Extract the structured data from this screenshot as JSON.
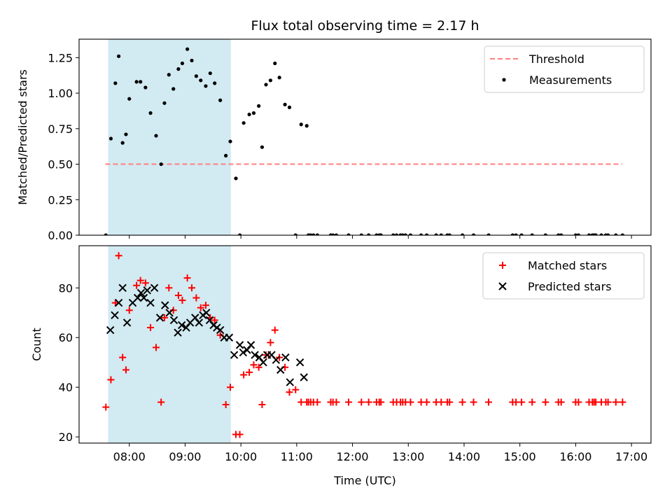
{
  "chart_data": [
    {
      "type": "scatter",
      "title": "Flux total observing time = 2.17 h",
      "xlabel": "",
      "ylabel": "Matched/Predicted stars",
      "x_unit": "hours UTC",
      "xlim": [
        7.1,
        17.35
      ],
      "ylim": [
        0,
        1.38
      ],
      "yticks": [
        0,
        0.25,
        0.5,
        0.75,
        1.0,
        1.25
      ],
      "ytick_labels": [
        "0.00",
        "0.25",
        "0.50",
        "0.75",
        "1.00",
        "1.25"
      ],
      "shaded_interval": {
        "start": 7.62,
        "end": 9.82,
        "color": "#add8e6"
      },
      "threshold": {
        "name": "Threshold",
        "value": 0.5,
        "x_range": [
          7.57,
          16.83
        ],
        "color": "#ff7f7f"
      },
      "legend": {
        "location": "top-right",
        "entries": [
          "Threshold",
          "Measurements"
        ]
      },
      "series": [
        {
          "name": "Measurements",
          "marker": "dot",
          "color": "#000000",
          "x": [
            7.58,
            7.67,
            7.75,
            7.81,
            7.88,
            7.94,
            8.0,
            8.13,
            8.2,
            8.29,
            8.38,
            8.48,
            8.57,
            8.63,
            8.71,
            8.79,
            8.88,
            8.95,
            9.04,
            9.12,
            9.2,
            9.28,
            9.37,
            9.45,
            9.53,
            9.63,
            9.73,
            9.81,
            9.91,
            9.98,
            10.05,
            10.15,
            10.23,
            10.32,
            10.38,
            10.45,
            10.53,
            10.61,
            10.69,
            10.79,
            10.87,
            10.98,
            11.08,
            11.18,
            11.21,
            11.25,
            11.3,
            11.37,
            11.61,
            11.65,
            11.71,
            11.93,
            12.16,
            12.29,
            12.43,
            12.48,
            12.51,
            12.73,
            12.79,
            12.86,
            12.9,
            12.95,
            13.04,
            13.23,
            13.33,
            13.5,
            13.59,
            13.7,
            13.74,
            13.97,
            14.17,
            14.44,
            14.87,
            14.93,
            15.03,
            15.22,
            15.46,
            15.69,
            15.74,
            16.0,
            16.05,
            16.24,
            16.3,
            16.33,
            16.36,
            16.46,
            16.54,
            16.58,
            16.72,
            16.84
          ],
          "y": [
            0.0,
            0.68,
            1.07,
            1.26,
            0.65,
            0.71,
            0.96,
            1.08,
            1.08,
            1.04,
            0.86,
            0.7,
            0.5,
            0.93,
            1.13,
            1.03,
            1.17,
            1.21,
            1.31,
            1.23,
            1.12,
            1.09,
            1.05,
            1.14,
            1.07,
            0.95,
            0.56,
            0.66,
            0.4,
            0.0,
            0.79,
            0.85,
            0.86,
            0.91,
            0.62,
            1.06,
            1.09,
            1.21,
            1.11,
            0.92,
            0.9,
            0.0,
            0.78,
            0.77,
            0.0,
            0.0,
            0.0,
            0.0,
            0.0,
            0.0,
            0.0,
            0.0,
            0.0,
            0.0,
            0.0,
            0.0,
            0.0,
            0.0,
            0.0,
            0.0,
            0.0,
            0.0,
            0.0,
            0.0,
            0.0,
            0.0,
            0.0,
            0.0,
            0.0,
            0.0,
            0.0,
            0.0,
            0.0,
            0.0,
            0.0,
            0.0,
            0.0,
            0.0,
            0.0,
            0.0,
            0.0,
            0.0,
            0.0,
            0.0,
            0.0,
            0.0,
            0.0,
            0.0,
            0.0,
            0.0
          ]
        }
      ]
    },
    {
      "type": "scatter",
      "title": "",
      "xlabel": "Time (UTC)",
      "ylabel": "Count",
      "x_unit": "hours UTC",
      "xlim": [
        7.1,
        17.35
      ],
      "ylim": [
        17.5,
        97
      ],
      "yticks": [
        20,
        40,
        60,
        80
      ],
      "ytick_labels": [
        "20",
        "40",
        "60",
        "80"
      ],
      "xticks": [
        8,
        9,
        10,
        11,
        12,
        13,
        14,
        15,
        16,
        17
      ],
      "xtick_labels": [
        "08:00",
        "09:00",
        "10:00",
        "11:00",
        "12:00",
        "13:00",
        "14:00",
        "15:00",
        "16:00",
        "17:00"
      ],
      "shaded_interval": {
        "start": 7.62,
        "end": 9.82,
        "color": "#add8e6"
      },
      "legend": {
        "location": "top-right",
        "entries": [
          "Matched stars",
          "Predicted stars"
        ]
      },
      "series": [
        {
          "name": "Matched stars",
          "marker": "plus",
          "color": "#ff0000",
          "x": [
            7.58,
            7.67,
            7.75,
            7.81,
            7.88,
            7.94,
            8.0,
            8.13,
            8.2,
            8.29,
            8.38,
            8.48,
            8.57,
            8.63,
            8.71,
            8.79,
            8.88,
            8.95,
            9.04,
            9.12,
            9.2,
            9.28,
            9.37,
            9.45,
            9.53,
            9.63,
            9.73,
            9.81,
            9.91,
            9.98,
            10.05,
            10.15,
            10.23,
            10.32,
            10.38,
            10.45,
            10.53,
            10.61,
            10.69,
            10.79,
            10.87,
            10.98,
            11.08,
            11.18,
            11.21,
            11.25,
            11.3,
            11.37,
            11.61,
            11.65,
            11.71,
            11.93,
            12.16,
            12.29,
            12.43,
            12.48,
            12.51,
            12.73,
            12.79,
            12.86,
            12.9,
            12.95,
            13.04,
            13.23,
            13.33,
            13.5,
            13.59,
            13.7,
            13.74,
            13.97,
            14.17,
            14.44,
            14.87,
            14.93,
            15.03,
            15.22,
            15.46,
            15.69,
            15.74,
            16.0,
            16.05,
            16.24,
            16.3,
            16.33,
            16.36,
            16.46,
            16.54,
            16.58,
            16.72,
            16.84
          ],
          "y": [
            32,
            43,
            74,
            93,
            52,
            47,
            71,
            81,
            83,
            82,
            64,
            56,
            34,
            68,
            80,
            71,
            77,
            75,
            84,
            80,
            76,
            72,
            73,
            68,
            67,
            61,
            33,
            40,
            21,
            21,
            45,
            46,
            49,
            48,
            33,
            53,
            58,
            63,
            52,
            48,
            38,
            39,
            34,
            34,
            34,
            34,
            34,
            34,
            34,
            34,
            34,
            34,
            34,
            34,
            34,
            34,
            34,
            34,
            34,
            34,
            34,
            34,
            34,
            34,
            34,
            34,
            34,
            34,
            34,
            34,
            34,
            34,
            34,
            34,
            34,
            34,
            34,
            34,
            34,
            34,
            34,
            34,
            34,
            34,
            34,
            34,
            34,
            34,
            34,
            34
          ]
        },
        {
          "name": "Predicted stars",
          "marker": "x",
          "color": "#000000",
          "x": [
            7.66,
            7.74,
            7.81,
            7.88,
            7.96,
            8.06,
            8.15,
            8.21,
            8.26,
            8.32,
            8.38,
            8.45,
            8.55,
            8.64,
            8.72,
            8.8,
            8.87,
            8.94,
            9.02,
            9.09,
            9.18,
            9.25,
            9.32,
            9.38,
            9.44,
            9.51,
            9.57,
            9.63,
            9.7,
            9.79,
            9.88,
            9.98,
            10.04,
            10.11,
            10.18,
            10.25,
            10.33,
            10.4,
            10.47,
            10.55,
            10.63,
            10.71,
            10.8,
            10.88,
            11.06,
            11.13
          ],
          "y": [
            63,
            69,
            74,
            80,
            66,
            74,
            76,
            78,
            76,
            79,
            74,
            80,
            68,
            73,
            70,
            67,
            62,
            65,
            64,
            66,
            68,
            66,
            69,
            70,
            67,
            65,
            64,
            63,
            60,
            60,
            53,
            57,
            54,
            55,
            57,
            53,
            52,
            50,
            53,
            53,
            51,
            47,
            52,
            42,
            50,
            44
          ]
        }
      ]
    }
  ]
}
